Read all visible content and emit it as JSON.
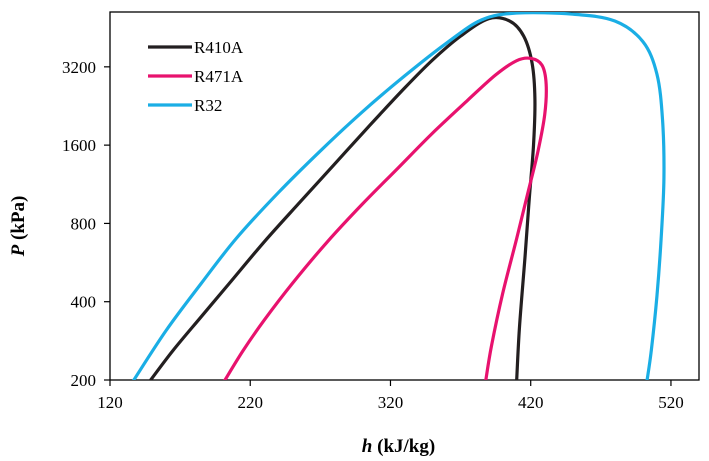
{
  "chart_data": {
    "type": "line",
    "title": "",
    "xlabel": {
      "italic": "h",
      "rest": " (kJ/kg)"
    },
    "ylabel": {
      "italic": "P",
      "rest": " (kPa)"
    },
    "xlim": [
      120,
      540
    ],
    "ylim": [
      200,
      5200
    ],
    "yscale": "log2",
    "xticks": [
      120,
      220,
      320,
      420,
      520
    ],
    "xtick_labels": [
      "120",
      "220",
      "320",
      "420",
      "520"
    ],
    "yticks": [
      200,
      400,
      800,
      1600,
      3200
    ],
    "ytick_labels": [
      "200",
      "400",
      "800",
      "1600",
      "3200"
    ],
    "grid": false,
    "legend": "top-left",
    "series": [
      {
        "name": "R410A",
        "color": "#231f20",
        "x": [
          149,
          165,
          185,
          205,
          230,
          255,
          280,
          305,
          330,
          350,
          370,
          390,
          405,
          415,
          421,
          423,
          422,
          419,
          416,
          412,
          410
        ],
        "y": [
          200,
          260,
          350,
          470,
          680,
          960,
          1350,
          1900,
          2650,
          3400,
          4200,
          4900,
          4800,
          4200,
          3300,
          2400,
          1600,
          1000,
          600,
          320,
          200
        ]
      },
      {
        "name": "R471A",
        "color": "#e8126e",
        "x": [
          202,
          215,
          230,
          250,
          275,
          300,
          325,
          350,
          375,
          395,
          410,
          420,
          428,
          431,
          430,
          425,
          418,
          410,
          400,
          392,
          388
        ],
        "y": [
          200,
          260,
          340,
          470,
          680,
          950,
          1300,
          1780,
          2380,
          2980,
          3380,
          3450,
          3250,
          2750,
          2100,
          1500,
          1050,
          700,
          430,
          270,
          200
        ]
      },
      {
        "name": "R32",
        "color": "#1aaee5",
        "x": [
          137,
          160,
          185,
          210,
          240,
          270,
          300,
          330,
          360,
          385,
          410,
          450,
          480,
          500,
          510,
          514,
          515,
          513,
          510,
          506,
          503
        ],
        "y": [
          200,
          310,
          470,
          700,
          1050,
          1520,
          2150,
          2950,
          3950,
          4850,
          5150,
          5100,
          4800,
          4000,
          3000,
          2000,
          1200,
          700,
          420,
          260,
          200
        ]
      }
    ]
  }
}
